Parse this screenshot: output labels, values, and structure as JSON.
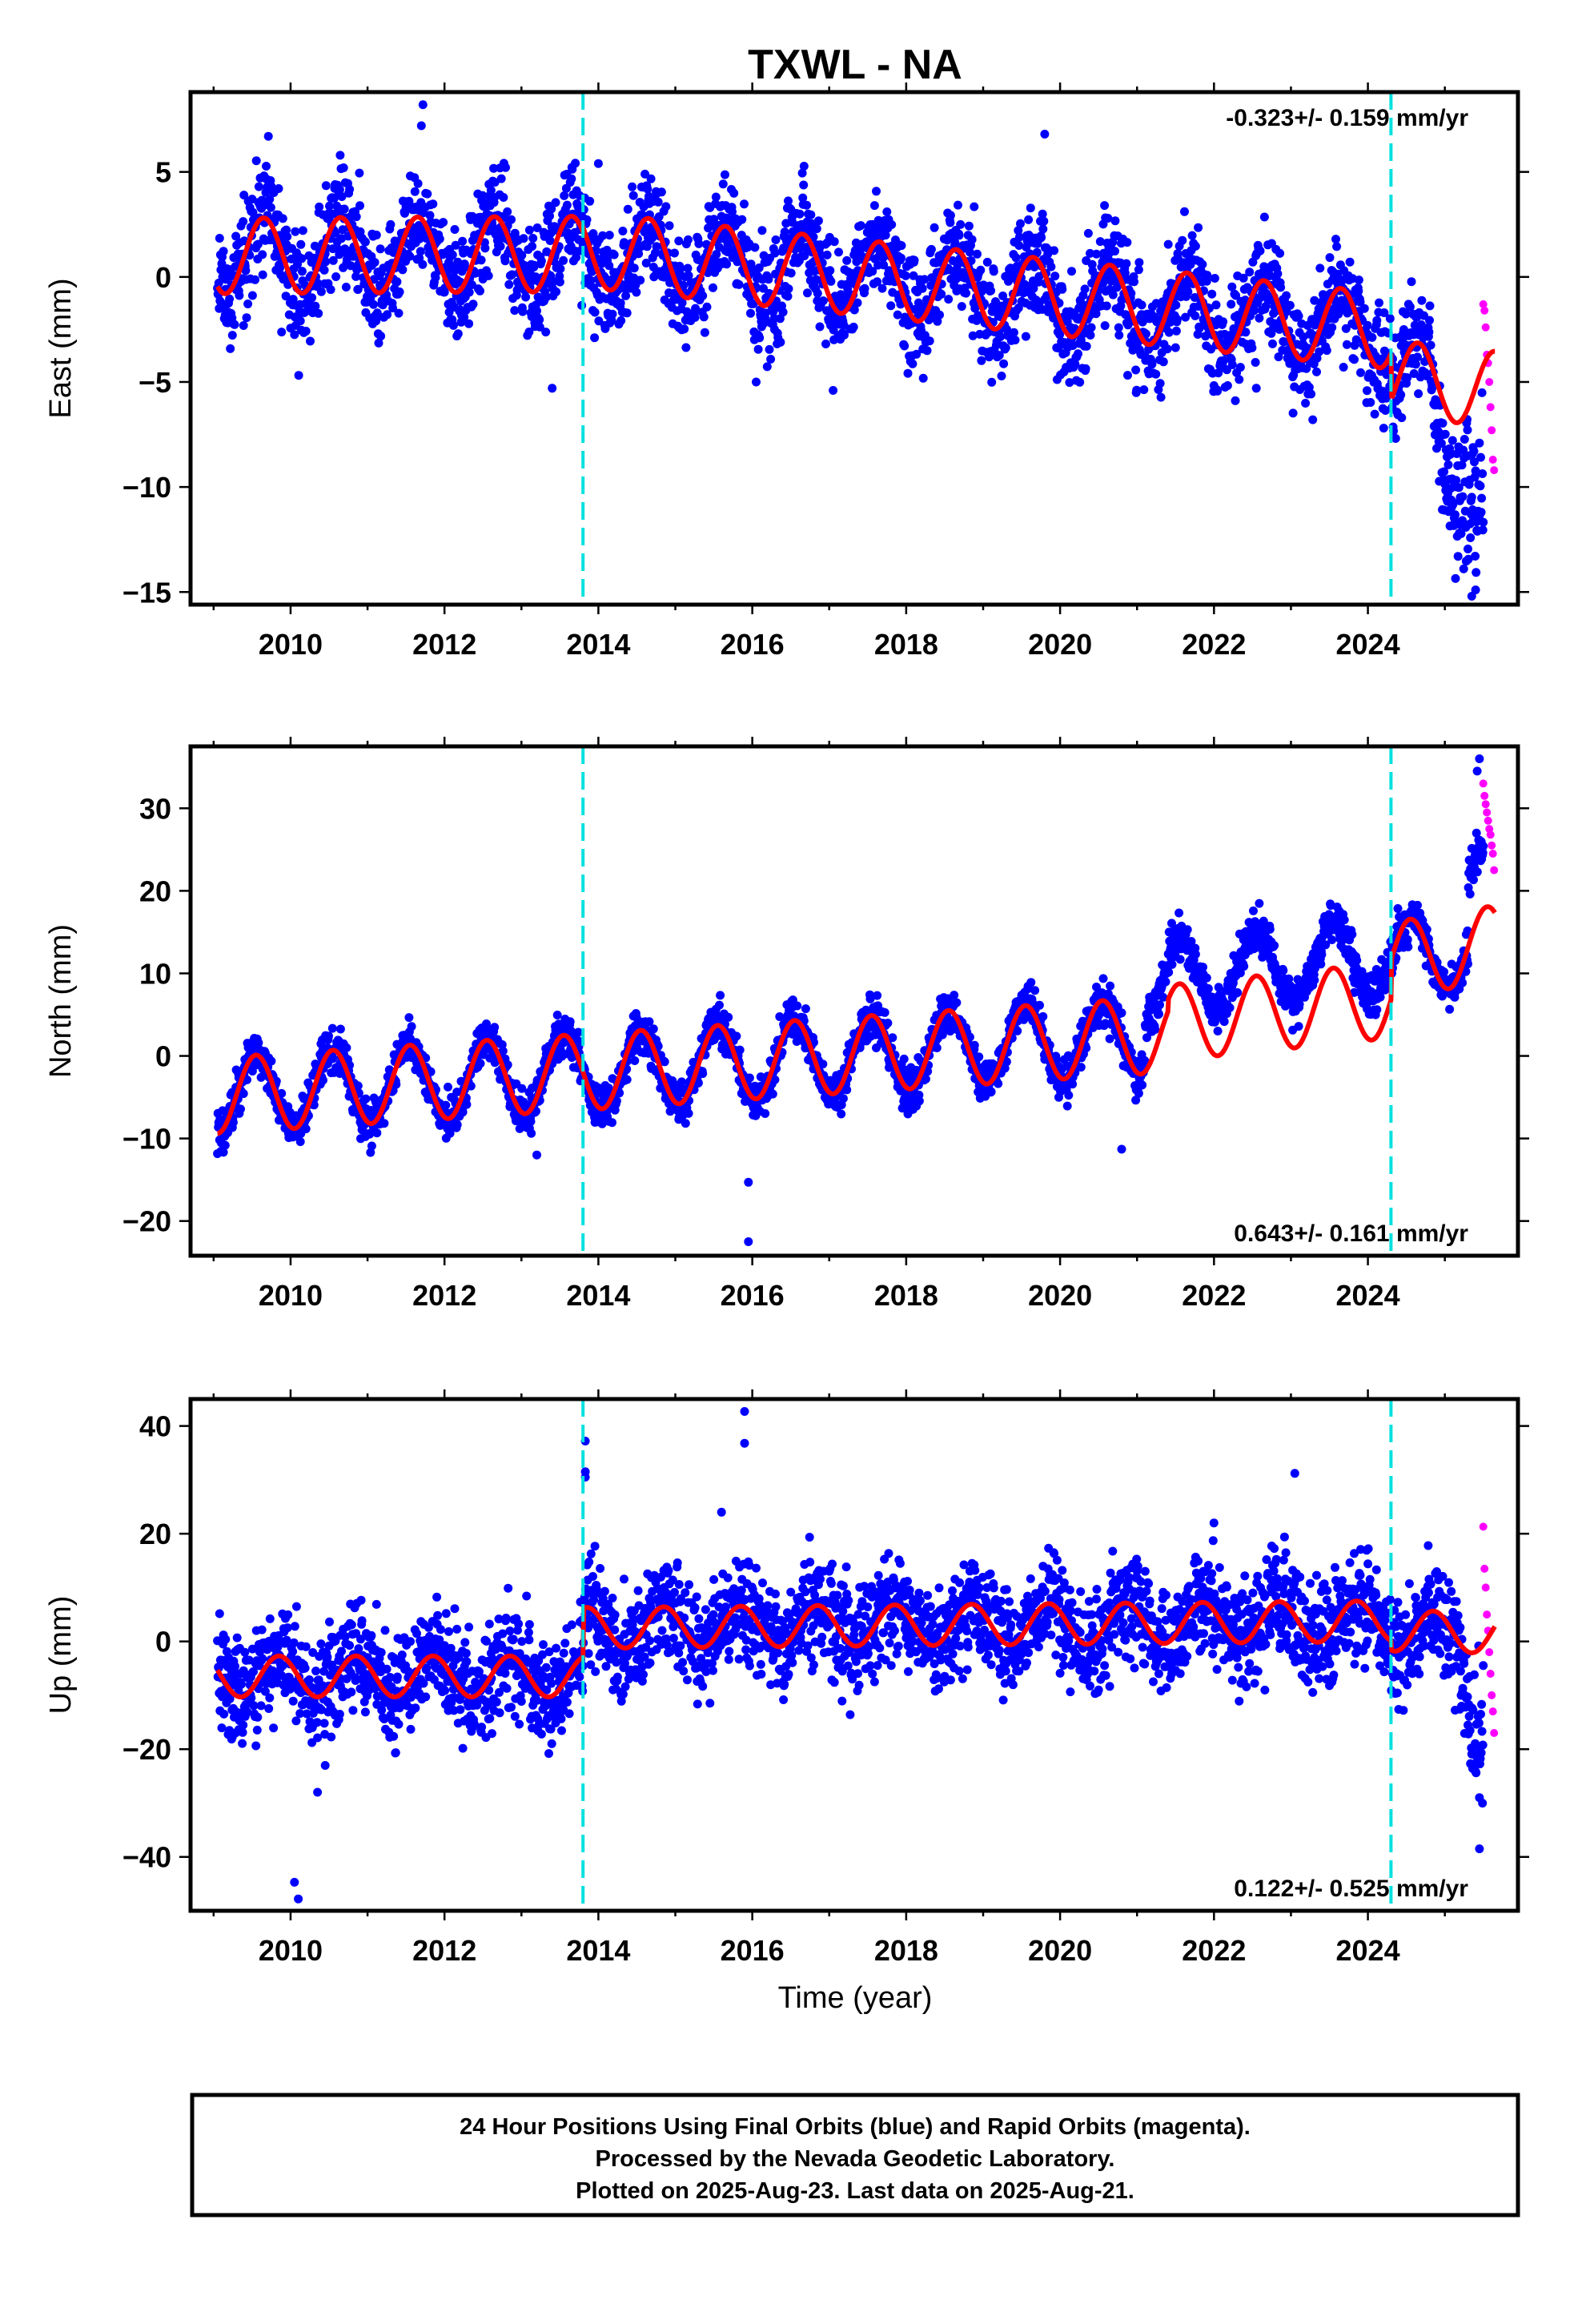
{
  "title": "TXWL - NA",
  "colors": {
    "final_orbits": "#0000ff",
    "rapid_orbits": "#ff00ff",
    "model": "#ff0000",
    "event_lines": "#00e0e0",
    "frame": "#000000"
  },
  "xlabel": "Time (year)",
  "footer": {
    "line1": "24 Hour Positions Using Final Orbits (blue) and Rapid Orbits (magenta).",
    "line2": "Processed by the Nevada Geodetic Laboratory.",
    "line3": "Plotted on 2025-Aug-23. Last data on 2025-Aug-21."
  },
  "chart_data": [
    {
      "type": "scatter",
      "ylabel": "East (mm)",
      "rate_label": "-0.323+/- 0.159 mm/yr",
      "rate_position": "top-right",
      "xlim": [
        2008.7,
        2025.95
      ],
      "ylim": [
        -15.6,
        8.8
      ],
      "xticks": [
        2010,
        2012,
        2014,
        2016,
        2018,
        2020,
        2022,
        2024
      ],
      "yticks": [
        5,
        0,
        -5,
        -10,
        -15
      ],
      "ytick_labels": [
        "5",
        "0",
        "−5",
        "−10",
        "−15"
      ],
      "event_lines_x": [
        2013.8,
        2024.3
      ],
      "grid": false,
      "model": {
        "start": 2009.05,
        "end": 2025.65,
        "segments": [
          {
            "from": 2009.05,
            "to": 2013.8,
            "value_at_start": 1.0,
            "slope": 0.02
          },
          {
            "from": 2013.8,
            "to": 2024.3,
            "value_at_start": 1.3,
            "slope": -0.37
          },
          {
            "from": 2024.3,
            "to": 2025.65,
            "value_at_start": -4.8,
            "slope": -0.4
          }
        ],
        "seasonal_amplitude": 1.8,
        "seasonal_peak_year_fraction": 0.65
      },
      "series": [
        {
          "name": "Final Orbits",
          "color": "#0000ff",
          "from": 2009.05,
          "to": 2025.5,
          "scatter_sd": 1.3
        },
        {
          "name": "Rapid Orbits",
          "color": "#ff00ff",
          "from": 2025.5,
          "to": 2025.64,
          "values": [
            -1.3,
            -1.6,
            -2.4,
            -3.7,
            -4.1,
            -5.0,
            -6.2,
            -7.3,
            -8.7,
            -9.2
          ]
        }
      ],
      "late_excursion": {
        "from": 2024.85,
        "to": 2025.5,
        "extra": [
          -2.0,
          -9.5
        ]
      },
      "outliers": [
        [
          2011.72,
          8.2
        ],
        [
          2011.7,
          7.2
        ],
        [
          2019.8,
          6.8
        ],
        [
          2013.4,
          -5.3
        ],
        [
          2014.0,
          5.4
        ],
        [
          2016.05,
          -5.0
        ],
        [
          2017.05,
          -5.4
        ],
        [
          2022.55,
          -5.3
        ],
        [
          2025.35,
          -15.2
        ],
        [
          2025.4,
          -14.9
        ]
      ]
    },
    {
      "type": "scatter",
      "ylabel": "North (mm)",
      "rate_label": "0.643+/- 0.161 mm/yr",
      "rate_position": "bottom-right",
      "xlim": [
        2008.7,
        2025.95
      ],
      "ylim": [
        -24.2,
        37.5
      ],
      "xticks": [
        2010,
        2012,
        2014,
        2016,
        2018,
        2020,
        2022,
        2024
      ],
      "yticks": [
        30,
        20,
        10,
        0,
        -10,
        -20
      ],
      "ytick_labels": [
        "30",
        "20",
        "10",
        "0",
        "−10",
        "−20"
      ],
      "event_lines_x": [
        2013.8,
        2024.3
      ],
      "grid": false,
      "model": {
        "start": 2009.05,
        "end": 2025.65,
        "segments": [
          {
            "from": 2009.05,
            "to": 2021.4,
            "value_at_start": -4.8,
            "slope": 0.6
          },
          {
            "from": 2021.4,
            "to": 2024.3,
            "value_at_start": 4.0,
            "slope": 0.95
          },
          {
            "from": 2024.3,
            "to": 2025.65,
            "value_at_start": 11.6,
            "slope": 1.5
          }
        ],
        "seasonal_amplitude": 4.6,
        "seasonal_peak_year_fraction": 0.55
      },
      "series": [
        {
          "name": "Final Orbits",
          "color": "#0000ff",
          "from": 2009.05,
          "to": 2025.5,
          "scatter_sd": 1.3
        },
        {
          "name": "Rapid Orbits",
          "color": "#ff00ff",
          "from": 2025.5,
          "to": 2025.64,
          "values": [
            33.0,
            31.5,
            30.5,
            29.5,
            28.5,
            27.5,
            26.8,
            25.5,
            24.5,
            22.5
          ]
        }
      ],
      "data_offsets": [
        {
          "from": 2021.1,
          "to": 2024.3,
          "offset": 5.5
        },
        {
          "from": 2024.3,
          "to": 2025.3,
          "offset": 0.0
        },
        {
          "from": 2025.3,
          "to": 2025.5,
          "offset": 8.0
        }
      ],
      "outliers": [
        [
          2015.95,
          -15.3
        ],
        [
          2015.95,
          -22.5
        ],
        [
          2020.8,
          -11.3
        ],
        [
          2013.2,
          -12.0
        ],
        [
          2025.45,
          36.0
        ],
        [
          2025.42,
          34.5
        ]
      ]
    },
    {
      "type": "scatter",
      "ylabel": "Up (mm)",
      "rate_label": "0.122+/- 0.525 mm/yr",
      "rate_position": "bottom-right",
      "xlim": [
        2008.7,
        2025.95
      ],
      "ylim": [
        -50,
        45
      ],
      "xticks": [
        2010,
        2012,
        2014,
        2016,
        2018,
        2020,
        2022,
        2024
      ],
      "yticks": [
        40,
        20,
        0,
        -20,
        -40
      ],
      "ytick_labels": [
        "40",
        "20",
        "0",
        "−20",
        "−40"
      ],
      "event_lines_x": [
        2013.8,
        2024.3
      ],
      "grid": false,
      "model": {
        "start": 2009.05,
        "end": 2025.65,
        "segments": [
          {
            "from": 2009.05,
            "to": 2013.8,
            "value_at_start": -6.5,
            "slope": 0.0
          },
          {
            "from": 2013.8,
            "to": 2024.3,
            "value_at_start": 2.5,
            "slope": 0.12
          },
          {
            "from": 2024.3,
            "to": 2025.65,
            "value_at_start": 2.0,
            "slope": -0.3
          }
        ],
        "seasonal_amplitude": 3.8,
        "seasonal_peak_year_fraction": 0.85
      },
      "series": [
        {
          "name": "Final Orbits",
          "color": "#0000ff",
          "from": 2009.05,
          "to": 2025.5,
          "scatter_sd": 4.8
        },
        {
          "name": "Rapid Orbits",
          "color": "#ff00ff",
          "from": 2025.5,
          "to": 2025.64,
          "values": [
            21.3,
            13.5,
            10.0,
            5.0,
            2.0,
            -2.0,
            -6.0,
            -10.0,
            -13.0,
            -17.0
          ]
        }
      ],
      "late_excursion": {
        "from": 2025.2,
        "to": 2025.5,
        "extra": [
          -4.0,
          -36.0
        ]
      },
      "outliers": [
        [
          2013.83,
          37.2
        ],
        [
          2013.83,
          31.5
        ],
        [
          2013.83,
          30.5
        ],
        [
          2015.9,
          42.7
        ],
        [
          2015.9,
          36.8
        ],
        [
          2010.05,
          -44.7
        ],
        [
          2010.1,
          -47.8
        ],
        [
          2010.35,
          -28.0
        ],
        [
          2023.05,
          31.2
        ],
        [
          2015.6,
          24.0
        ],
        [
          2022.0,
          22.0
        ],
        [
          2025.45,
          -38.5
        ]
      ]
    }
  ]
}
